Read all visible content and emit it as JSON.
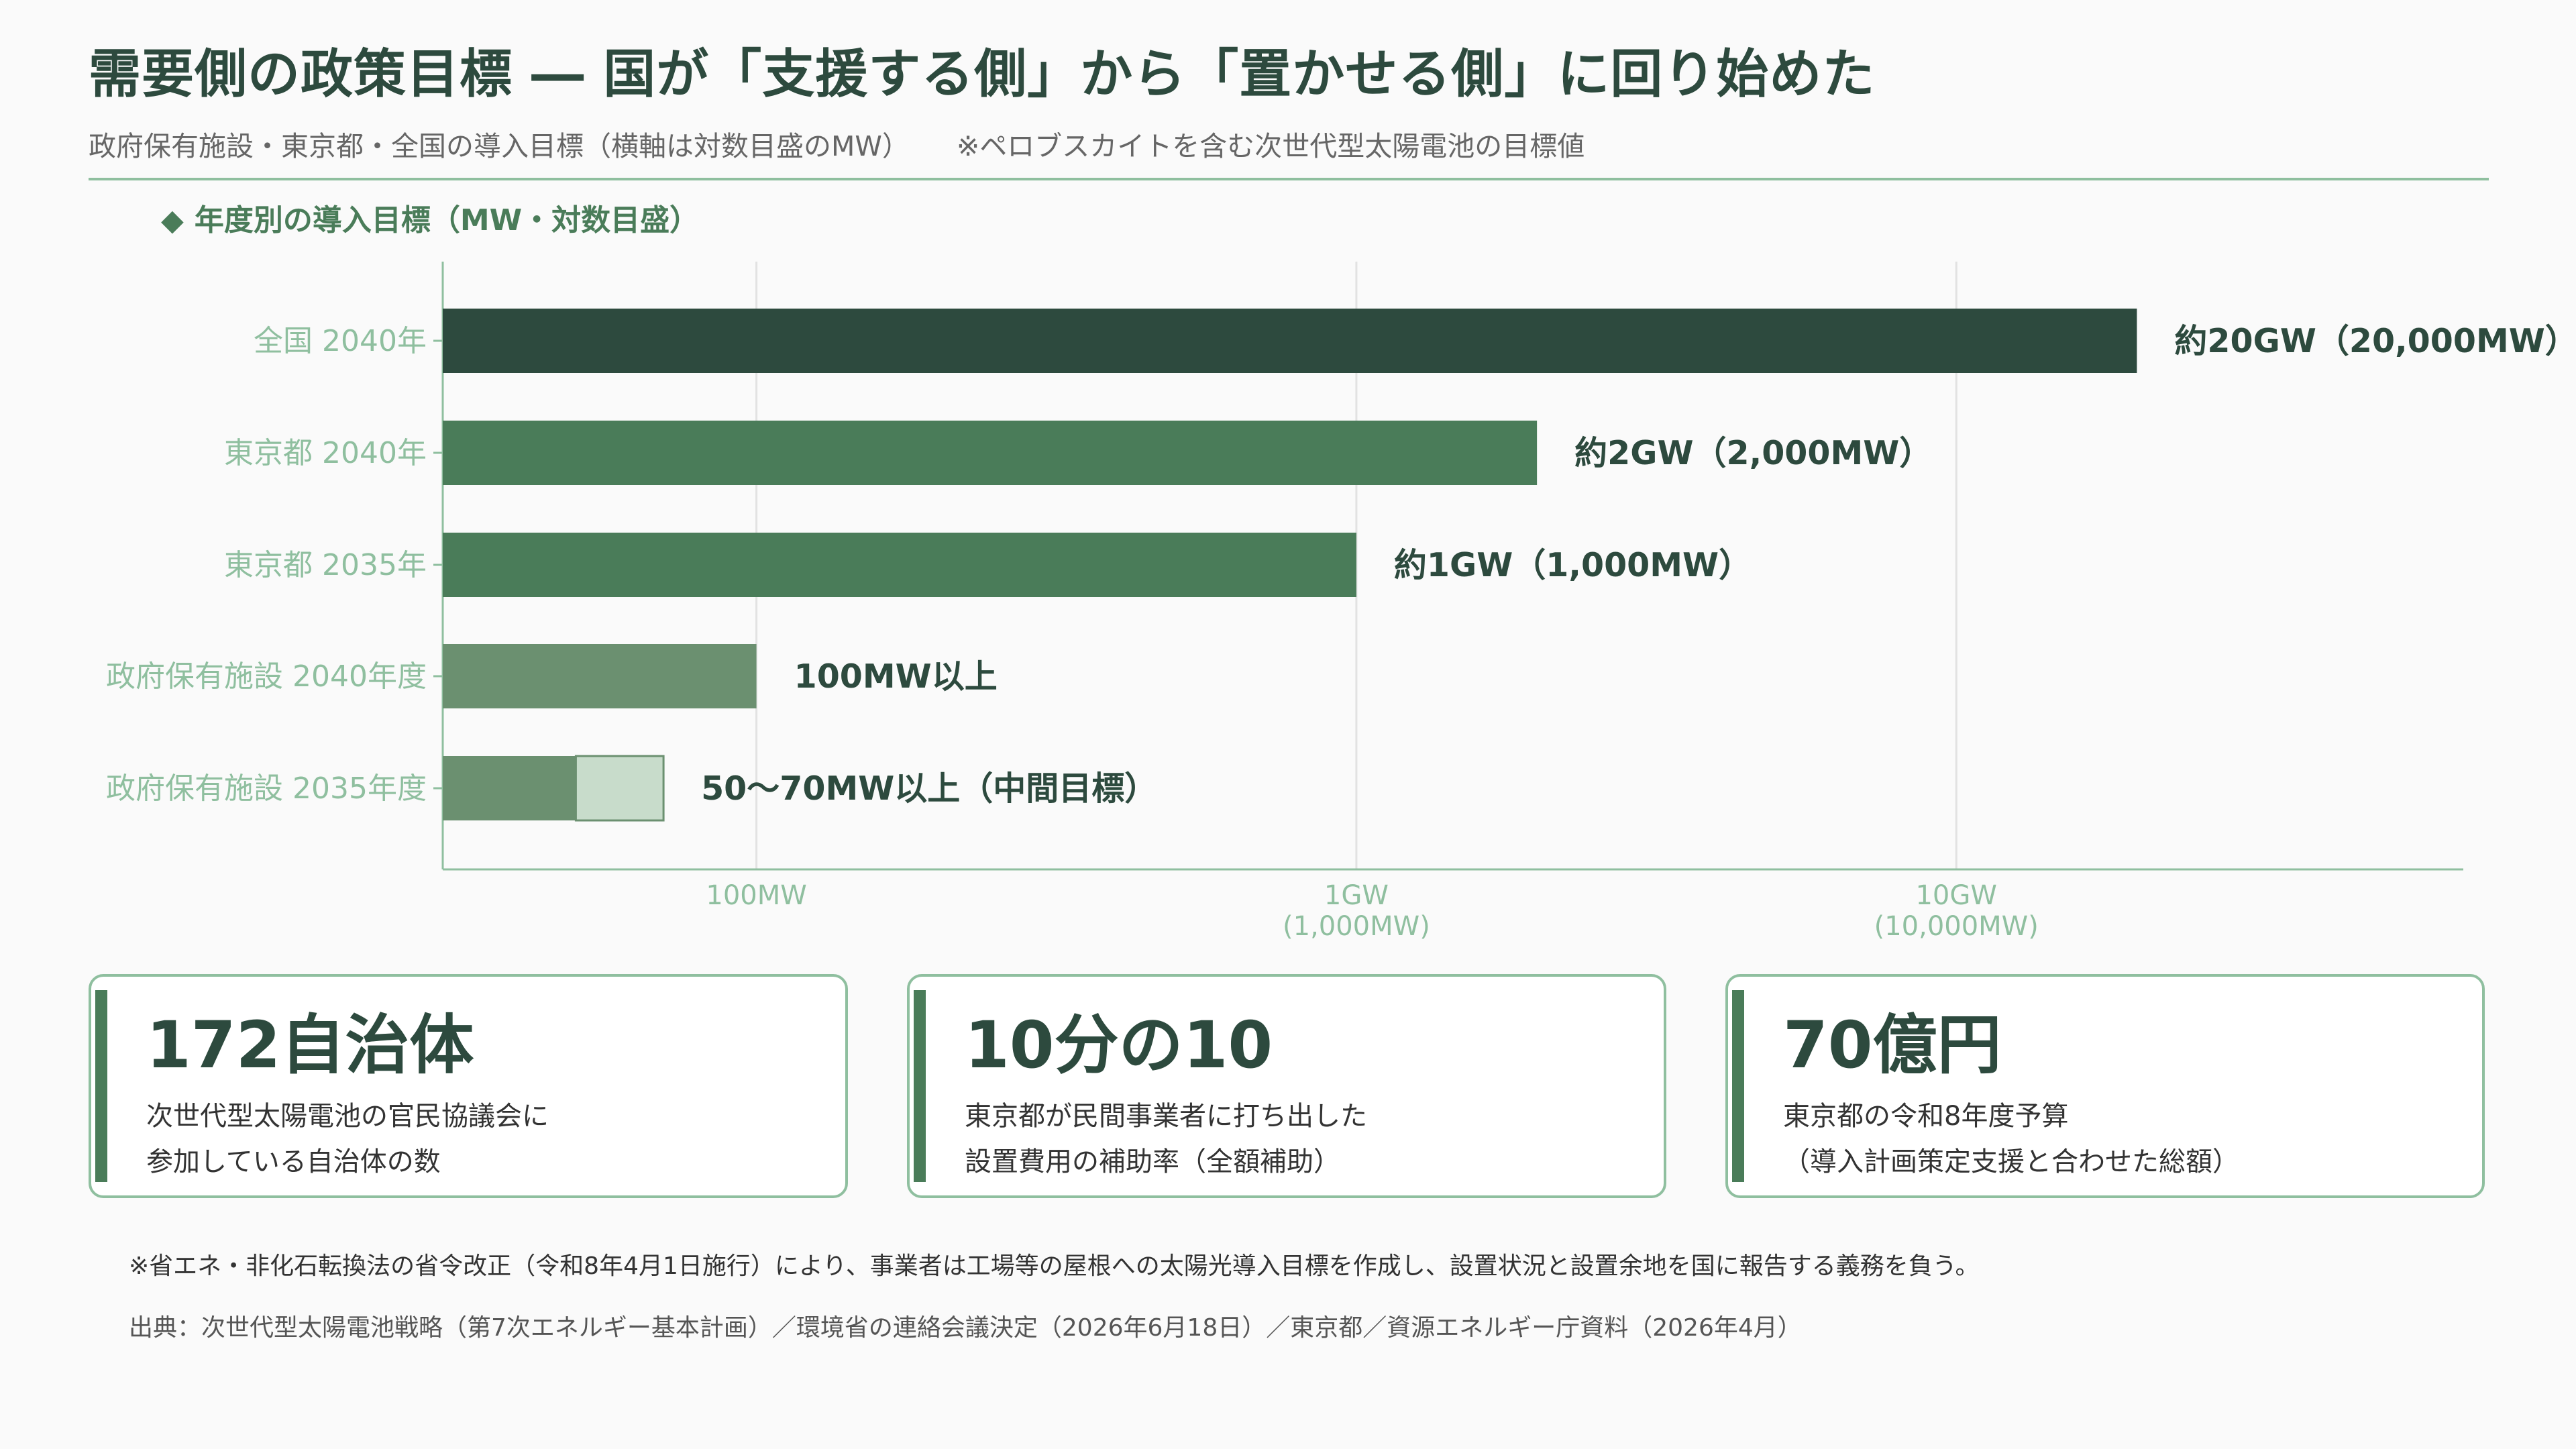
{
  "title": "需要側の政策目標 ― 国が「支援する側」から「置かせる側」に回り始めた",
  "subtitle": "政府保有施設・東京都・全国の導入目標（横軸は対数目盛のMW）",
  "subtitle_note": "※ペロブスカイトを含む次世代型太陽電池の目標値",
  "chart_heading": "年度別の導入目標（MW・対数目盛）",
  "chart_heading_icon": "diamond-icon",
  "colors": {
    "dark": "#2d4a3e",
    "mid": "#4a7c59",
    "light": "#6b9070",
    "pale": "#c8dccb",
    "rule": "#8fbf9f"
  },
  "chart_data": {
    "type": "bar",
    "orientation": "horizontal",
    "x_scale": "log",
    "x_unit": "MW",
    "xlim": [
      30,
      70000
    ],
    "grid": true,
    "categories": [
      "全国 2040年",
      "東京都 2040年",
      "東京都 2035年",
      "政府保有施設 2040年度",
      "政府保有施設 2035年度"
    ],
    "values": [
      20000,
      2000,
      1000,
      100,
      50
    ],
    "range_upper": [
      null,
      null,
      null,
      null,
      70
    ],
    "value_labels": [
      "約20GW（20,000MW）",
      "約2GW（2,000MW）",
      "約1GW（1,000MW）",
      "100MW以上",
      "50〜70MW以上（中間目標）"
    ],
    "bar_colors": [
      "#2d4a3e",
      "#4a7c59",
      "#4a7c59",
      "#6b9070",
      "#6b9070"
    ],
    "x_ticks": [
      {
        "value": 100,
        "label": "100MW",
        "sublabel": ""
      },
      {
        "value": 1000,
        "label": "1GW",
        "sublabel": "(1,000MW)"
      },
      {
        "value": 10000,
        "label": "10GW",
        "sublabel": "(10,000MW)"
      }
    ]
  },
  "cards": [
    {
      "value": "172自治体",
      "desc1": "次世代型太陽電池の官民協議会に",
      "desc2": "参加している自治体の数"
    },
    {
      "value": "10分の10",
      "desc1": "東京都が民間事業者に打ち出した",
      "desc2": "設置費用の補助率（全額補助）"
    },
    {
      "value": "70億円",
      "desc1": "東京都の令和8年度予算",
      "desc2": "（導入計画策定支援と合わせた総額）"
    }
  ],
  "footnote": "※省エネ・非化石転換法の省令改正（令和8年4月1日施行）により、事業者は工場等の屋根への太陽光導入目標を作成し、設置状況と設置余地を国に報告する義務を負う。",
  "source": "出典：次世代型太陽電池戦略（第7次エネルギー基本計画）／環境省の連絡会議決定（2026年6月18日）／東京都／資源エネルギー庁資料（2026年4月）"
}
